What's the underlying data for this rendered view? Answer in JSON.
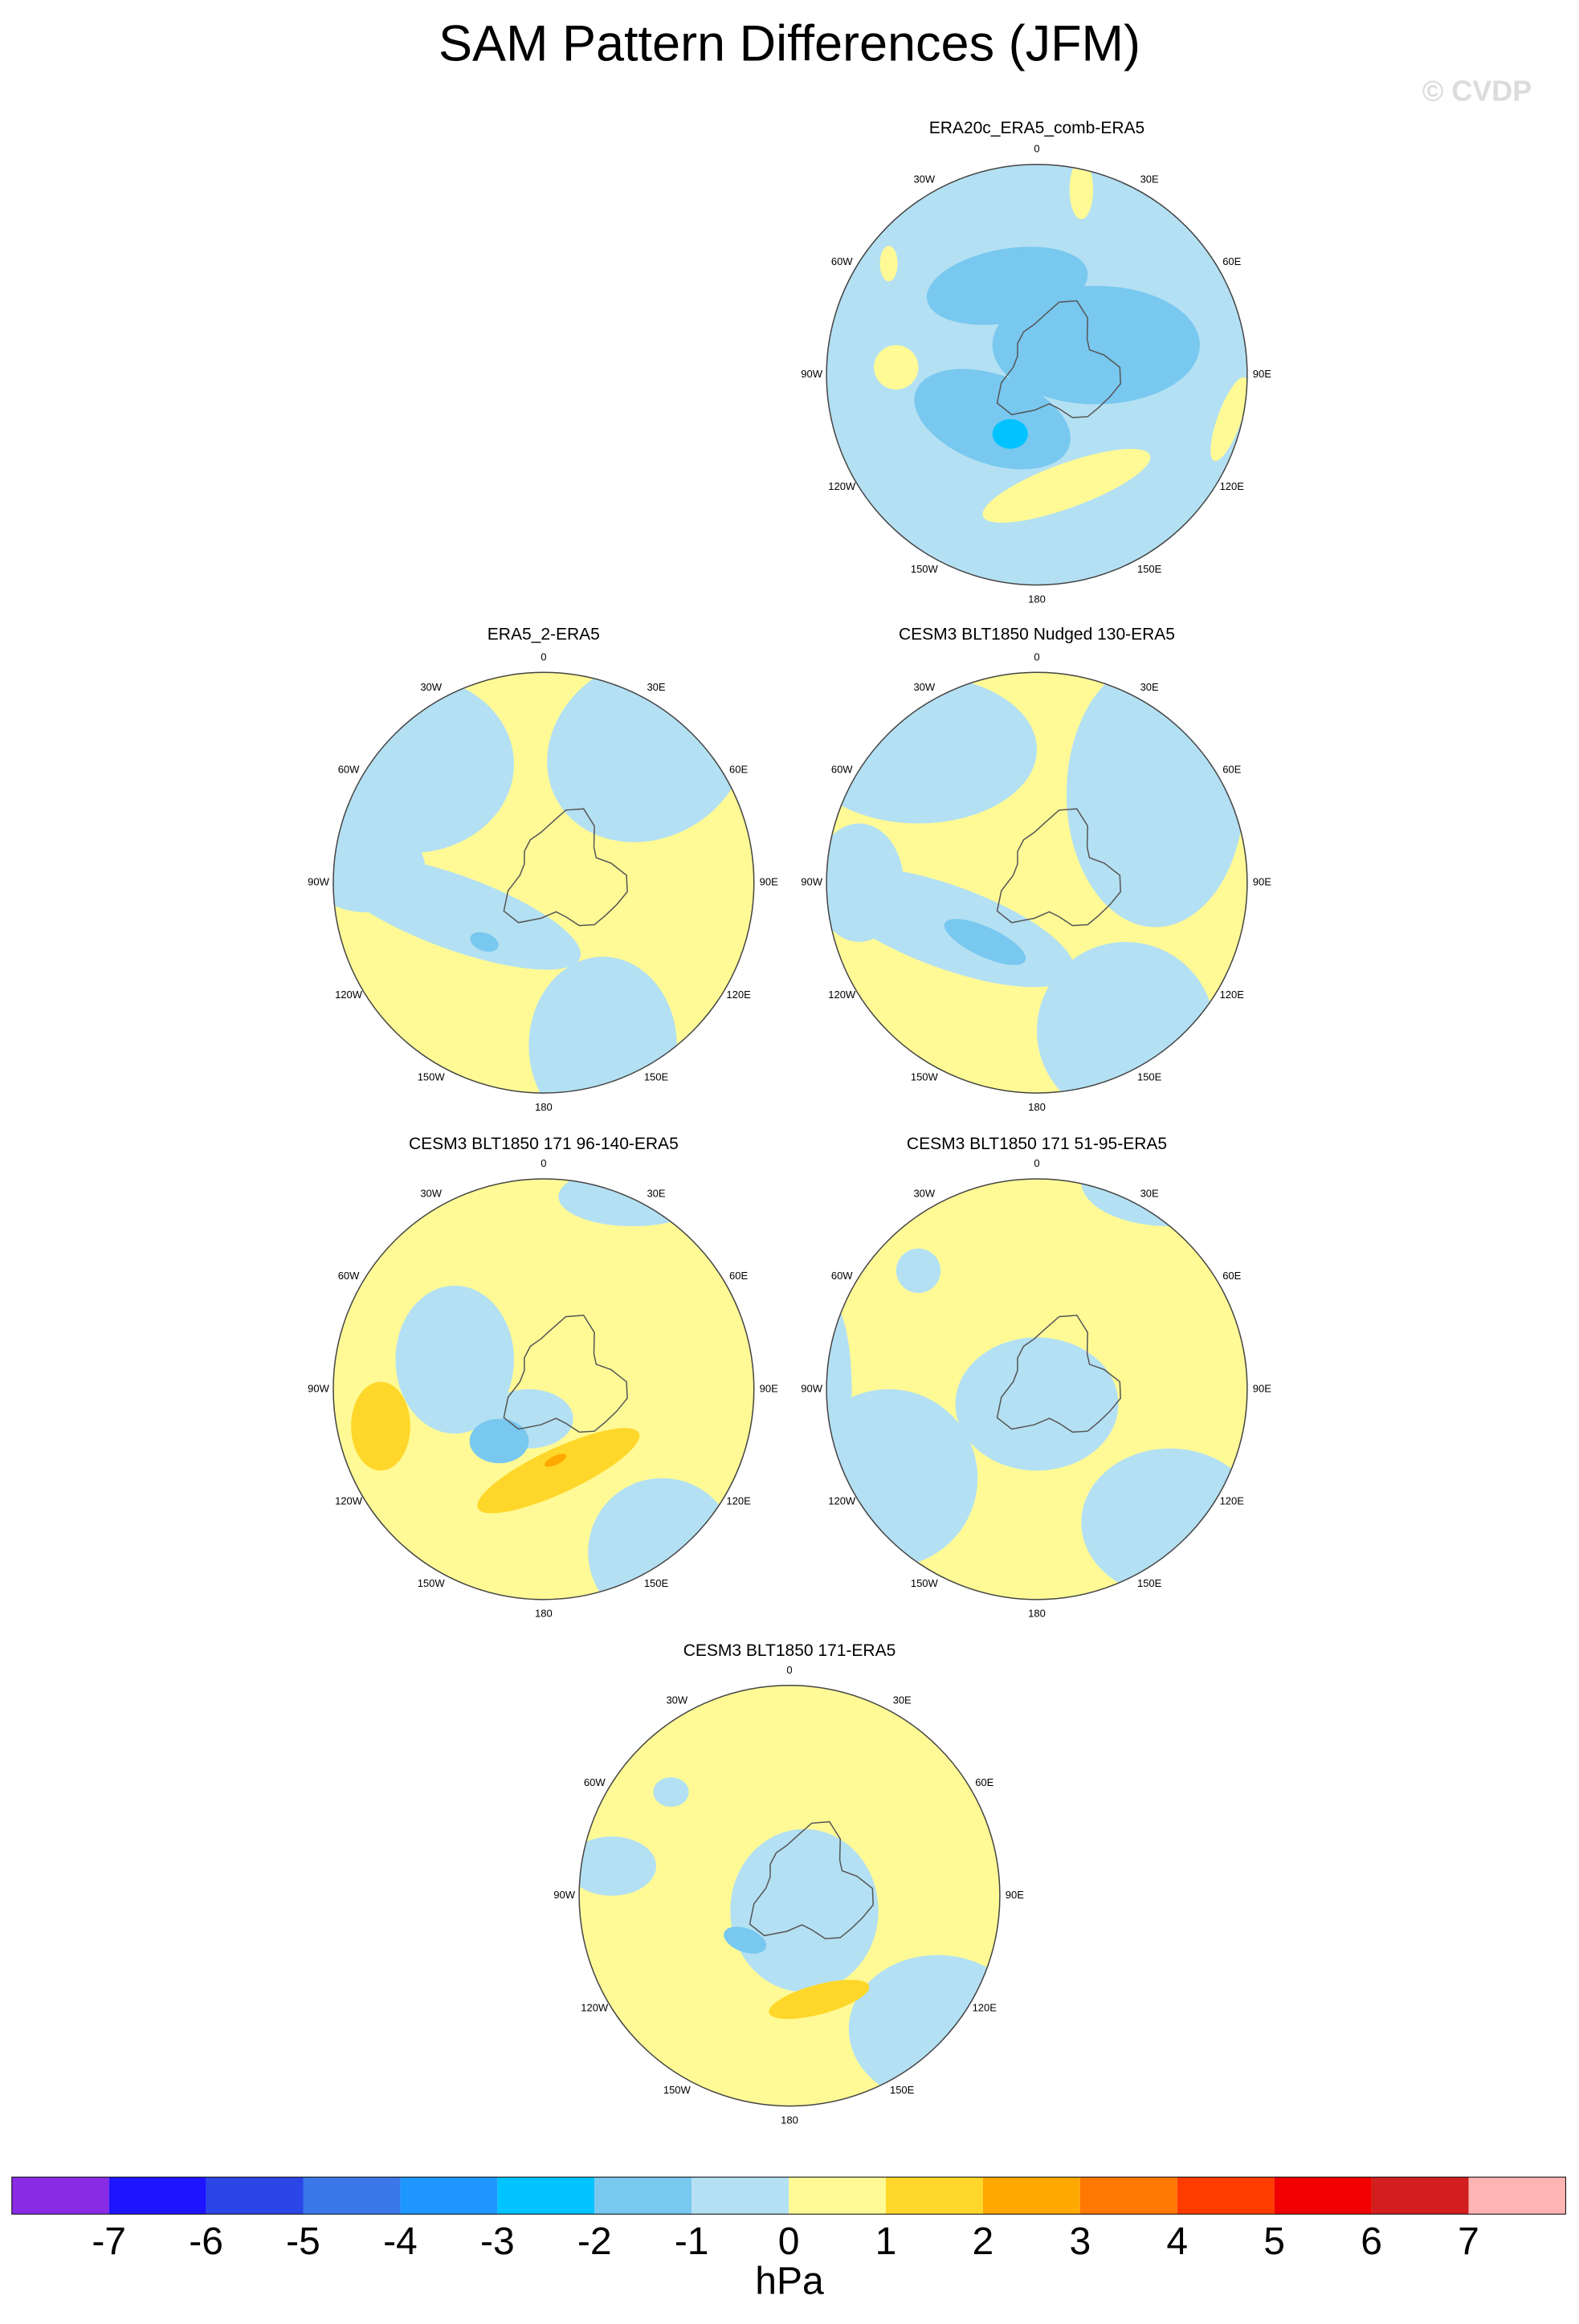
{
  "title": "SAM Pattern Differences (JFM)",
  "watermark": "© CVDP",
  "panels": [
    {
      "title": "ERA20c_ERA5_comb-ERA5"
    },
    {
      "title": "ERA5_2-ERA5"
    },
    {
      "title": "CESM3 BLT1850 Nudged 130-ERA5"
    },
    {
      "title": "CESM3 BLT1850 171 96-140-ERA5"
    },
    {
      "title": "CESM3 BLT1850 171 51-95-ERA5"
    },
    {
      "title": "CESM3 BLT1850 171-ERA5"
    }
  ],
  "lon_labels": [
    "0",
    "30E",
    "60E",
    "90E",
    "120E",
    "150E",
    "180",
    "150W",
    "120W",
    "90W",
    "60W",
    "30W"
  ],
  "colorbar": {
    "colors": [
      "#8a2be6",
      "#1e14ff",
      "#2a46e6",
      "#3a78ea",
      "#1e96ff",
      "#00c3ff",
      "#78c8f0",
      "#b4e0f3",
      "#fffa96",
      "#ffd72a",
      "#ffa800",
      "#ff7800",
      "#ff3c00",
      "#f00000",
      "#d21e1e",
      "#ffb4b4"
    ],
    "ticks": [
      -7,
      -6,
      -5,
      -4,
      -3,
      -2,
      -1,
      0,
      1,
      2,
      3,
      4,
      5,
      6,
      7
    ],
    "label": "hPa"
  }
}
